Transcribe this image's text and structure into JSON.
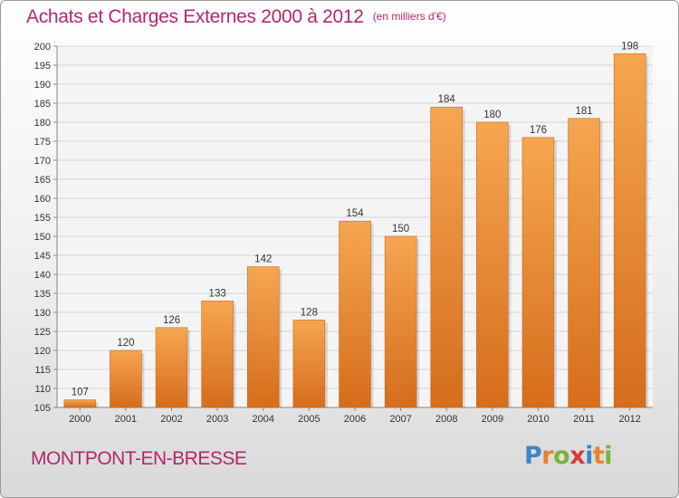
{
  "title": "Achats et Charges Externes 2000 à 2012",
  "unit_note": "(en milliers d'€)",
  "town": "MONTPONT-EN-BRESSE",
  "logo": "Proxiti",
  "colors": {
    "title": "#b0296a",
    "bar_light": "#f5a34e",
    "bar_dark": "#d9701e",
    "grid": "#d0d0d0"
  },
  "chart_data": {
    "type": "bar",
    "categories": [
      "2000",
      "2001",
      "2002",
      "2003",
      "2004",
      "2005",
      "2006",
      "2007",
      "2008",
      "2009",
      "2010",
      "2011",
      "2012"
    ],
    "values": [
      107,
      120,
      126,
      133,
      142,
      128,
      154,
      150,
      184,
      180,
      176,
      181,
      198
    ],
    "ylim": [
      105,
      200
    ],
    "yticks": [
      105,
      110,
      115,
      120,
      125,
      130,
      135,
      140,
      145,
      150,
      155,
      160,
      165,
      170,
      175,
      180,
      185,
      190,
      195,
      200
    ],
    "grid": true
  }
}
